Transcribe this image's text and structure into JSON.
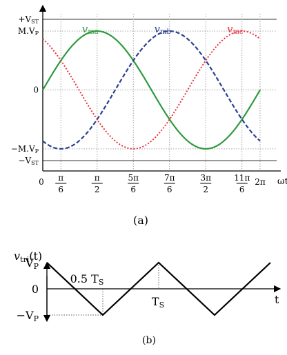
{
  "chart_data": [
    {
      "type": "line",
      "panel_caption": "(a)",
      "x_axis_label": "ωt",
      "xlim": [
        0,
        6.2832
      ],
      "ylim": [
        -1.2,
        1.2
      ],
      "level_labels": [
        {
          "id": "vst_pos",
          "text": "+V",
          "sub": "ST",
          "value": 1.2,
          "line": "solid"
        },
        {
          "id": "mvp_pos",
          "text": "M.V",
          "sub": "P",
          "value": 1.0,
          "line": "dotted"
        },
        {
          "id": "zero",
          "text": "0",
          "sub": "",
          "value": 0,
          "line": "dotted"
        },
        {
          "id": "mvp_neg",
          "text": "−M.V",
          "sub": "P",
          "value": -1.0,
          "line": "dotted"
        },
        {
          "id": "vst_neg",
          "text": "−V",
          "sub": "ST",
          "value": -1.2,
          "line": "solid"
        }
      ],
      "x_ticks": [
        {
          "id": "zero",
          "value": 0,
          "num": "0",
          "den": "",
          "grid": false
        },
        {
          "id": "pi6",
          "value": 0.5236,
          "num": "π",
          "den": "6",
          "grid": true
        },
        {
          "id": "pi2",
          "value": 1.5708,
          "num": "π",
          "den": "2",
          "grid": true
        },
        {
          "id": "5pi6",
          "value": 2.618,
          "num": "5π",
          "den": "6",
          "grid": true
        },
        {
          "id": "7pi6",
          "value": 3.6652,
          "num": "7π",
          "den": "6",
          "grid": true
        },
        {
          "id": "3pi2",
          "value": 4.7124,
          "num": "3π",
          "den": "2",
          "grid": true
        },
        {
          "id": "11pi6",
          "value": 5.7596,
          "num": "11π",
          "den": "6",
          "grid": true
        },
        {
          "id": "2pi",
          "value": 6.2832,
          "num": "2π",
          "den": "",
          "grid": true
        }
      ],
      "series": [
        {
          "id": "vma",
          "name": "v",
          "sub": "ma",
          "color": "#2e9a3e",
          "dash": "solid",
          "phase_deg": 0
        },
        {
          "id": "vmb",
          "name": "v",
          "sub": "mb",
          "color": "#2a3f8f",
          "dash": "dashed",
          "phase_deg": -120
        },
        {
          "id": "vmc",
          "name": "v",
          "sub": "mc",
          "color": "#e8323c",
          "dash": "dotted",
          "phase_deg": 120
        }
      ]
    },
    {
      "type": "line",
      "panel_caption": "(b)",
      "y_axis_label": {
        "text": "v",
        "sub": "tri",
        "suffix": "(t)"
      },
      "x_axis_label": "t",
      "y_ticks": [
        {
          "id": "vp",
          "text": "V",
          "sub": "P",
          "value": 1
        },
        {
          "id": "zero",
          "text": "0",
          "sub": "",
          "value": 0
        },
        {
          "id": "neg_vp",
          "text": "−V",
          "sub": "P",
          "value": -1
        }
      ],
      "annotations": [
        {
          "id": "half_ts",
          "text": "0.5 T",
          "sub": "S"
        },
        {
          "id": "ts",
          "text": "T",
          "sub": "S"
        }
      ],
      "points": [
        {
          "t": 0,
          "v": 1
        },
        {
          "t": 0.5,
          "v": -1
        },
        {
          "t": 1.0,
          "v": 1
        },
        {
          "t": 1.5,
          "v": -1
        },
        {
          "t": 2.0,
          "v": 1
        }
      ]
    }
  ]
}
